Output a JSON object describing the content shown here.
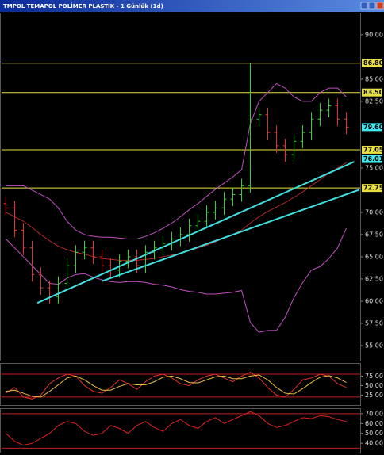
{
  "chart_data": [
    {
      "type": "ohlc",
      "title": "TMPOL TEMAPOL POLİMER PLASTİK - 1 Günlük (1d)",
      "up_color": "#30d030",
      "down_color": "#e03030",
      "open": [
        71,
        70.5,
        68,
        66,
        63,
        61.5,
        60.5,
        62,
        64,
        65.5,
        66,
        65,
        64,
        63.5,
        64.5,
        65,
        64,
        65.5,
        66,
        66.5,
        67,
        67.5,
        68.5,
        69,
        70,
        70.5,
        71.5,
        72,
        73,
        80.5,
        81,
        79,
        77.5,
        76.5,
        78,
        79,
        80.5,
        81.5,
        82,
        80.5
      ],
      "high": [
        71.8,
        71.3,
        68.8,
        66.8,
        63.8,
        62.3,
        62.8,
        64.8,
        66.3,
        66.8,
        66.8,
        65.8,
        64.8,
        65.3,
        65.8,
        65.8,
        66.3,
        66.8,
        67.3,
        67.8,
        68.3,
        69.3,
        69.8,
        70.8,
        71.3,
        72.3,
        72.8,
        73.8,
        86.8,
        81.8,
        81.8,
        79.8,
        78.3,
        78.8,
        79.8,
        81.3,
        82.3,
        82.8,
        82.8,
        81.3
      ],
      "low": [
        69.7,
        67.2,
        65.2,
        62.2,
        60.7,
        59.7,
        59.7,
        61.2,
        63.2,
        64.7,
        64.2,
        63.2,
        62.7,
        62.7,
        63.7,
        63.2,
        63.2,
        64.7,
        65.2,
        65.7,
        66.2,
        66.7,
        67.7,
        68.2,
        69.2,
        69.7,
        70.7,
        71.2,
        72.2,
        79.7,
        78.2,
        76.7,
        75.7,
        75.7,
        77.2,
        78.2,
        79.7,
        80.7,
        79.7,
        78.8
      ],
      "close": [
        70.5,
        68,
        66,
        63,
        61.5,
        60.5,
        62,
        64,
        65.5,
        66,
        65,
        64,
        63.5,
        64.5,
        65,
        64,
        65.5,
        66,
        66.5,
        67,
        67.5,
        68.5,
        69,
        70,
        70.5,
        71.5,
        72,
        73,
        80.5,
        81,
        79,
        77.5,
        76.5,
        78,
        79,
        80.5,
        81.5,
        82,
        80.5,
        79.6
      ],
      "series": [
        {
          "color": "#c050c0",
          "values": [
            73,
            73,
            73,
            72.5,
            72,
            71.5,
            70.5,
            69,
            68,
            67.5,
            67.3,
            67.2,
            67.2,
            67.1,
            67,
            67,
            67.3,
            67.7,
            68.2,
            68.8,
            69.5,
            70.3,
            71,
            71.8,
            72.6,
            73.3,
            74,
            74.8,
            80,
            82.5,
            83.5,
            84.5,
            84,
            83,
            82.5,
            82.5,
            83.5,
            84,
            84,
            83
          ]
        },
        {
          "color": "#b02828",
          "values": [
            70,
            69.5,
            69,
            68.3,
            67.5,
            66.8,
            66.2,
            65.8,
            65.5,
            65.3,
            65,
            64.8,
            64.7,
            64.6,
            64.6,
            64.6,
            64.7,
            64.8,
            65,
            65.2,
            65.4,
            65.7,
            66,
            66.3,
            66.7,
            67.1,
            67.5,
            68,
            68.8,
            69.5,
            70.1,
            70.6,
            71.1,
            71.7,
            72.3,
            73,
            73.7,
            74.4,
            75,
            75.6
          ]
        },
        {
          "color": "#c050c0",
          "values": [
            67,
            66,
            65,
            64,
            63,
            62,
            61.9,
            62.6,
            63,
            63.1,
            62.7,
            62.4,
            62.2,
            62.1,
            62.2,
            62.2,
            62.1,
            61.9,
            61.8,
            61.6,
            61.3,
            61.1,
            61,
            60.8,
            60.8,
            60.9,
            61,
            61.2,
            57.6,
            56.5,
            56.7,
            56.7,
            58.2,
            60.4,
            62.1,
            63.5,
            63.9,
            64.8,
            66,
            68.2
          ]
        }
      ],
      "trendlines": [
        {
          "color": "#40e0e0",
          "x": [
            3.6,
            39.9
          ],
          "y": [
            59.8,
            75.7
          ]
        },
        {
          "color": "#40e0e0",
          "x": [
            11,
            40.5
          ],
          "y": [
            62.25,
            72.55
          ]
        }
      ],
      "levels": [
        {
          "value": 86.8,
          "label": "86.800",
          "color": "#e8e040"
        },
        {
          "value": 83.5,
          "label": "83.500",
          "color": "#e8e040"
        },
        {
          "value": 77.05,
          "label": "77.050",
          "color": "#e8e040"
        },
        {
          "value": 72.75,
          "label": "72.750",
          "color": "#e8e040"
        }
      ],
      "markers": [
        {
          "value": 79.6,
          "label": "79.600",
          "color": "#40e8f0"
        },
        {
          "value": 76.013,
          "label": "76.013",
          "color": "#40e8f0"
        }
      ],
      "ylim": [
        53.3,
        92.4
      ],
      "yticks": [
        {
          "value": 55,
          "label": "55.00"
        },
        {
          "value": 57.5,
          "label": "57.50"
        },
        {
          "value": 60,
          "label": "60.00"
        },
        {
          "value": 62.5,
          "label": "62.50"
        },
        {
          "value": 65,
          "label": "65.00"
        },
        {
          "value": 67.5,
          "label": "67.50"
        },
        {
          "value": 70,
          "label": "70.00"
        },
        {
          "value": 75,
          "label": "75.00"
        },
        {
          "value": 82.5,
          "label": "82.50"
        },
        {
          "value": 85,
          "label": "85.00"
        },
        {
          "value": 90,
          "label": "90.00"
        }
      ]
    },
    {
      "type": "line",
      "series": [
        {
          "color": "#e03030",
          "values": [
            30,
            45,
            20,
            15,
            25,
            55,
            70,
            80,
            75,
            50,
            35,
            30,
            45,
            65,
            55,
            40,
            60,
            75,
            80,
            70,
            55,
            50,
            65,
            75,
            80,
            70,
            60,
            75,
            85,
            70,
            45,
            25,
            20,
            40,
            65,
            70,
            80,
            75,
            55,
            45
          ]
        },
        {
          "color": "#e8c040",
          "values": [
            35,
            38,
            30,
            22,
            20,
            35,
            52,
            70,
            75,
            65,
            50,
            38,
            38,
            48,
            55,
            52,
            52,
            60,
            72,
            75,
            68,
            58,
            57,
            65,
            73,
            75,
            68,
            68,
            75,
            78,
            65,
            45,
            30,
            28,
            42,
            58,
            72,
            76,
            70,
            58
          ]
        }
      ],
      "levels": [
        80,
        20
      ],
      "level_color": "#c02020",
      "ylim": [
        -1,
        107
      ],
      "yticks": [
        {
          "value": 25,
          "label": "25.00"
        },
        {
          "value": 50,
          "label": "50.00"
        },
        {
          "value": 75,
          "label": "75.00"
        }
      ]
    },
    {
      "type": "line",
      "series": [
        {
          "color": "#e02020",
          "values": [
            50,
            42,
            38,
            40,
            45,
            50,
            58,
            62,
            60,
            52,
            48,
            50,
            58,
            55,
            50,
            58,
            62,
            56,
            52,
            60,
            64,
            58,
            55,
            62,
            66,
            60,
            64,
            68,
            72,
            68,
            60,
            56,
            58,
            62,
            66,
            65,
            68,
            67,
            64,
            62
          ]
        }
      ],
      "levels": [
        70,
        35
      ],
      "level_color": "#c02020",
      "ylim": [
        30.5,
        74.7
      ],
      "yticks": [
        {
          "value": 40,
          "label": "40.00"
        },
        {
          "value": 50,
          "label": "50.00"
        },
        {
          "value": 60,
          "label": "60.00"
        },
        {
          "value": 70,
          "label": "70.00"
        }
      ]
    }
  ]
}
